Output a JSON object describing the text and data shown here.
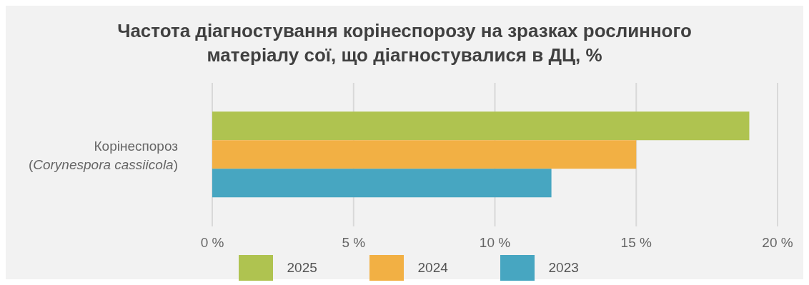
{
  "chart_data": {
    "type": "bar",
    "orientation": "horizontal",
    "title": "Частота діагностування корінеспорозу на зразках рослинного матеріалу сої, що діагностувалися в ДЦ, %",
    "categories": [
      "Корінеспороз (Corynespora cassiicola)"
    ],
    "series": [
      {
        "name": "2025",
        "color": "#afc350",
        "values": [
          19
        ]
      },
      {
        "name": "2024",
        "color": "#f2b044",
        "values": [
          15
        ]
      },
      {
        "name": "2023",
        "color": "#47a6c1",
        "values": [
          12
        ]
      }
    ],
    "xlim": [
      0,
      20
    ],
    "xticks": [
      {
        "value": 0,
        "label": "0 %"
      },
      {
        "value": 5,
        "label": "5 %"
      },
      {
        "value": 10,
        "label": "10 %"
      },
      {
        "value": 15,
        "label": "15 %"
      },
      {
        "value": 20,
        "label": "20 %"
      }
    ],
    "grid": "x",
    "legend": "bottom"
  }
}
